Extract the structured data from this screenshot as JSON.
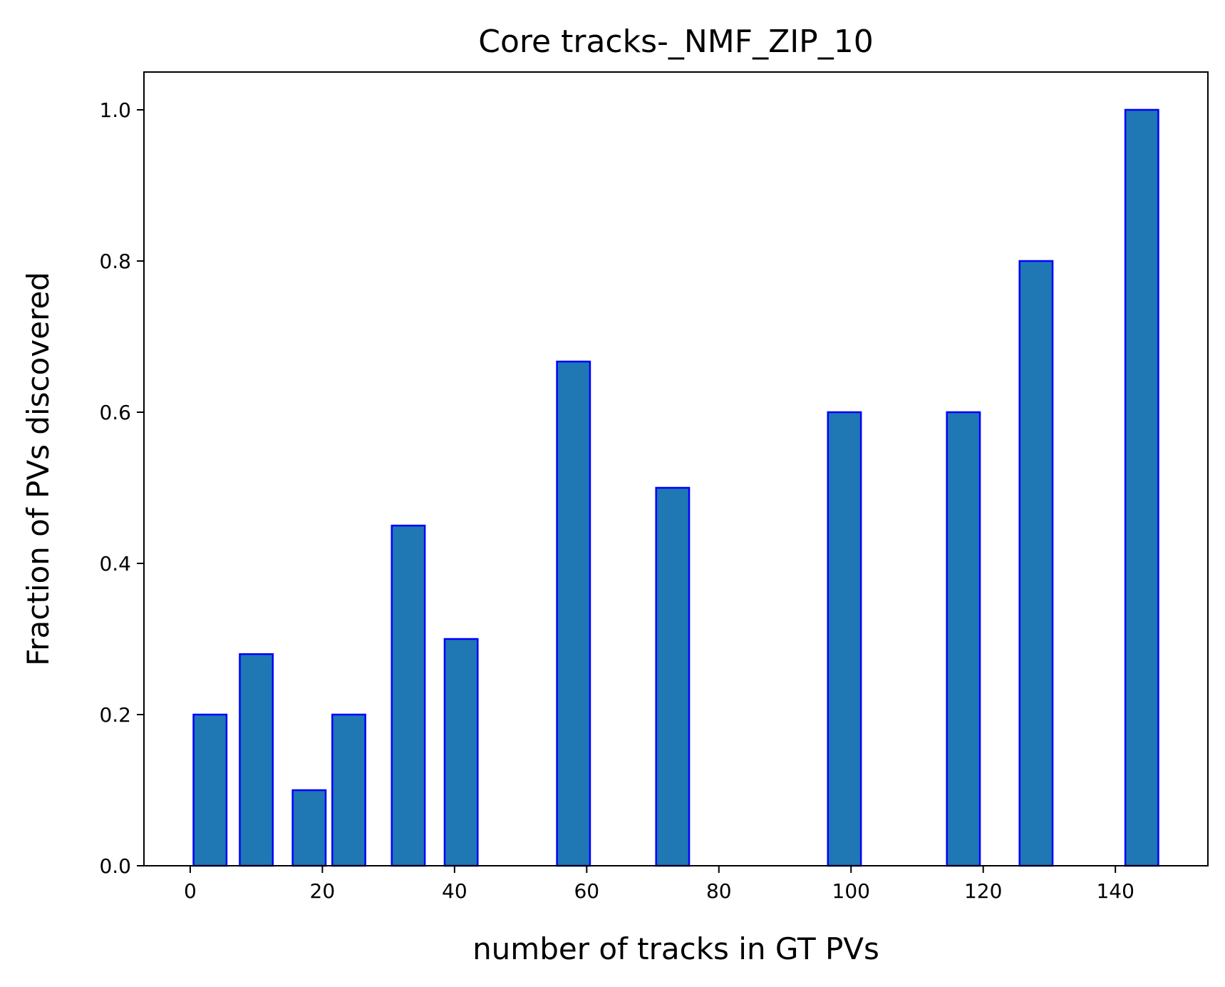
{
  "chart_data": {
    "type": "bar",
    "title": "Core tracks-_NMF_ZIP_10",
    "xlabel": "number of tracks in GT PVs",
    "ylabel": "Fraction of PVs discovered",
    "xlim": [
      -7,
      154
    ],
    "ylim": [
      0,
      1.05
    ],
    "xticks": [
      0,
      20,
      40,
      60,
      80,
      100,
      120,
      140
    ],
    "xtick_labels": [
      "0",
      "20",
      "40",
      "60",
      "80",
      "100",
      "120",
      "140"
    ],
    "yticks": [
      0.0,
      0.2,
      0.4,
      0.6,
      0.8,
      1.0
    ],
    "ytick_labels": [
      "0.0",
      "0.2",
      "0.4",
      "0.6",
      "0.8",
      "1.0"
    ],
    "bar_width": 5,
    "x": [
      3,
      10,
      18,
      24,
      33,
      41,
      58,
      73,
      99,
      117,
      128,
      144
    ],
    "values": [
      0.2,
      0.28,
      0.1,
      0.2,
      0.45,
      0.3,
      0.667,
      0.5,
      0.6,
      0.6,
      0.8,
      1.0
    ],
    "grid": false,
    "legend": "none",
    "bar_fill": "#1f77b4",
    "bar_edge": "#0000ff"
  }
}
